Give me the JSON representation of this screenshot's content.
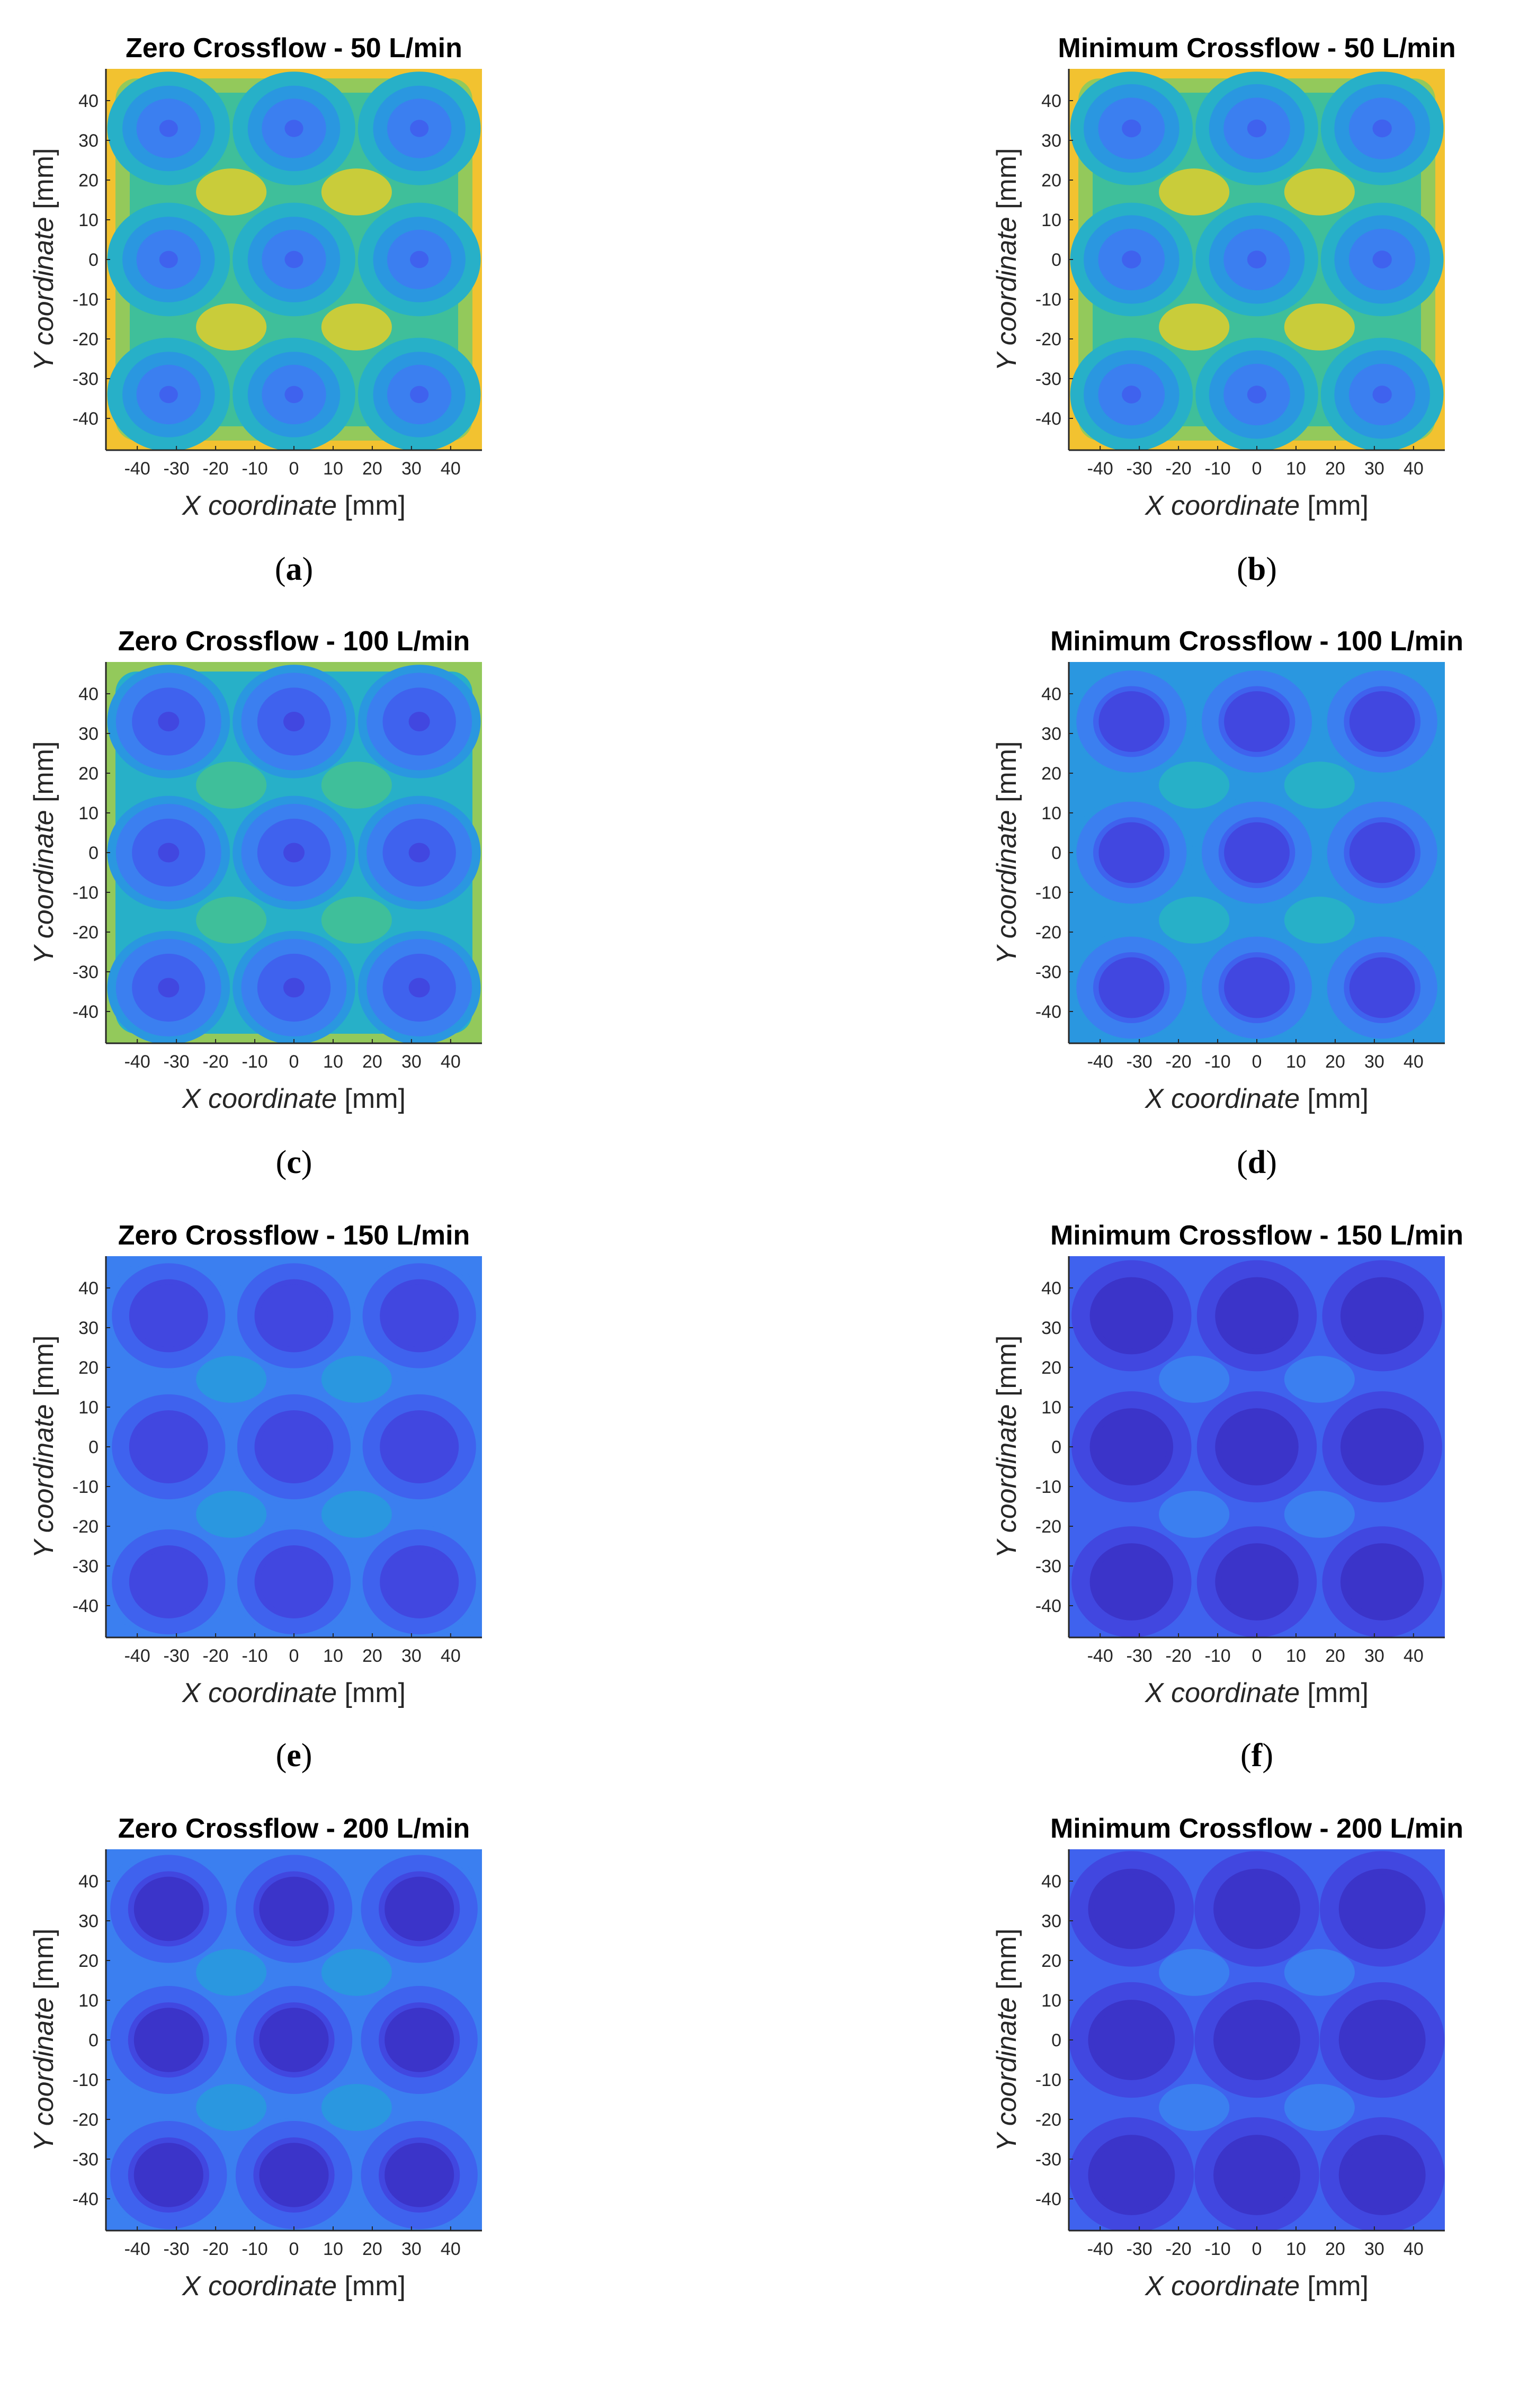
{
  "chart_data": [
    {
      "id": "a",
      "type": "heatmap",
      "caption_letter": "a",
      "title": "Zero Crossflow - 50 L/min",
      "xlabel_italic": "X coordinate",
      "xlabel_unit": " [mm]",
      "ylabel_italic": "Y coordinate",
      "ylabel_unit": " [mm]",
      "xlim": [
        -48,
        48
      ],
      "ylim": [
        -48,
        48
      ],
      "xticks": [
        -40,
        -30,
        -20,
        -10,
        0,
        10,
        20,
        30,
        40
      ],
      "yticks": [
        40,
        30,
        20,
        10,
        0,
        -10,
        -20,
        -30,
        -40
      ],
      "jets": [
        [
          -32,
          33
        ],
        [
          0,
          33
        ],
        [
          32,
          33
        ],
        [
          -32,
          0
        ],
        [
          0,
          0
        ],
        [
          32,
          0
        ],
        [
          -32,
          -34
        ],
        [
          0,
          -34
        ],
        [
          32,
          -34
        ]
      ],
      "level": 0.0
    },
    {
      "id": "b",
      "type": "heatmap",
      "caption_letter": "b",
      "title": "Minimum Crossflow - 50 L/min",
      "xlabel_italic": "X coordinate",
      "xlabel_unit": " [mm]",
      "ylabel_italic": "Y coordinate",
      "ylabel_unit": " [mm]",
      "xlim": [
        -48,
        48
      ],
      "ylim": [
        -48,
        48
      ],
      "xticks": [
        -40,
        -30,
        -20,
        -10,
        0,
        10,
        20,
        30,
        40
      ],
      "yticks": [
        40,
        30,
        20,
        10,
        0,
        -10,
        -20,
        -30,
        -40
      ],
      "jets": [
        [
          -32,
          33
        ],
        [
          0,
          33
        ],
        [
          32,
          33
        ],
        [
          -32,
          0
        ],
        [
          0,
          0
        ],
        [
          32,
          0
        ],
        [
          -32,
          -34
        ],
        [
          0,
          -34
        ],
        [
          32,
          -34
        ]
      ],
      "level": 0.1
    },
    {
      "id": "c",
      "type": "heatmap",
      "caption_letter": "c",
      "title": "Zero Crossflow - 100 L/min",
      "xlabel_italic": "X coordinate",
      "xlabel_unit": " [mm]",
      "ylabel_italic": "Y coordinate",
      "ylabel_unit": " [mm]",
      "xlim": [
        -48,
        48
      ],
      "ylim": [
        -48,
        48
      ],
      "xticks": [
        -40,
        -30,
        -20,
        -10,
        0,
        10,
        20,
        30,
        40
      ],
      "yticks": [
        40,
        30,
        20,
        10,
        0,
        -10,
        -20,
        -30,
        -40
      ],
      "jets": [
        [
          -32,
          33
        ],
        [
          0,
          33
        ],
        [
          32,
          33
        ],
        [
          -32,
          0
        ],
        [
          0,
          0
        ],
        [
          32,
          0
        ],
        [
          -32,
          -34
        ],
        [
          0,
          -34
        ],
        [
          32,
          -34
        ]
      ],
      "level": 0.4
    },
    {
      "id": "d",
      "type": "heatmap",
      "caption_letter": "d",
      "title": "Minimum Crossflow - 100 L/min",
      "xlabel_italic": "X coordinate",
      "xlabel_unit": " [mm]",
      "ylabel_italic": "Y coordinate",
      "ylabel_unit": " [mm]",
      "xlim": [
        -48,
        48
      ],
      "ylim": [
        -48,
        48
      ],
      "xticks": [
        -40,
        -30,
        -20,
        -10,
        0,
        10,
        20,
        30,
        40
      ],
      "yticks": [
        40,
        30,
        20,
        10,
        0,
        -10,
        -20,
        -30,
        -40
      ],
      "jets": [
        [
          -32,
          33
        ],
        [
          0,
          33
        ],
        [
          32,
          33
        ],
        [
          -32,
          0
        ],
        [
          0,
          0
        ],
        [
          32,
          0
        ],
        [
          -32,
          -34
        ],
        [
          0,
          -34
        ],
        [
          32,
          -34
        ]
      ],
      "level": 0.55
    },
    {
      "id": "e",
      "type": "heatmap",
      "caption_letter": "e",
      "title": "Zero Crossflow - 150 L/min",
      "xlabel_italic": "X coordinate",
      "xlabel_unit": " [mm]",
      "ylabel_italic": "Y coordinate",
      "ylabel_unit": " [mm]",
      "xlim": [
        -48,
        48
      ],
      "ylim": [
        -48,
        48
      ],
      "xticks": [
        -40,
        -30,
        -20,
        -10,
        0,
        10,
        20,
        30,
        40
      ],
      "yticks": [
        40,
        30,
        20,
        10,
        0,
        -10,
        -20,
        -30,
        -40
      ],
      "jets": [
        [
          -32,
          33
        ],
        [
          0,
          33
        ],
        [
          32,
          33
        ],
        [
          -32,
          0
        ],
        [
          0,
          0
        ],
        [
          32,
          0
        ],
        [
          -32,
          -34
        ],
        [
          0,
          -34
        ],
        [
          32,
          -34
        ]
      ],
      "level": 0.65
    },
    {
      "id": "f",
      "type": "heatmap",
      "caption_letter": "f",
      "title": "Minimum Crossflow - 150 L/min",
      "xlabel_italic": "X coordinate",
      "xlabel_unit": " [mm]",
      "ylabel_italic": "Y coordinate",
      "ylabel_unit": " [mm]",
      "xlim": [
        -48,
        48
      ],
      "ylim": [
        -48,
        48
      ],
      "xticks": [
        -40,
        -30,
        -20,
        -10,
        0,
        10,
        20,
        30,
        40
      ],
      "yticks": [
        40,
        30,
        20,
        10,
        0,
        -10,
        -20,
        -30,
        -40
      ],
      "jets": [
        [
          -32,
          33
        ],
        [
          0,
          33
        ],
        [
          32,
          33
        ],
        [
          -32,
          0
        ],
        [
          0,
          0
        ],
        [
          32,
          0
        ],
        [
          -32,
          -34
        ],
        [
          0,
          -34
        ],
        [
          32,
          -34
        ]
      ],
      "level": 0.85
    },
    {
      "id": "g",
      "type": "heatmap",
      "caption_letter": "",
      "title": "Zero Crossflow - 200 L/min",
      "xlabel_italic": "X coordinate",
      "xlabel_unit": " [mm]",
      "ylabel_italic": "Y coordinate",
      "ylabel_unit": " [mm]",
      "xlim": [
        -48,
        48
      ],
      "ylim": [
        -48,
        48
      ],
      "xticks": [
        -40,
        -30,
        -20,
        -10,
        0,
        10,
        20,
        30,
        40
      ],
      "yticks": [
        40,
        30,
        20,
        10,
        0,
        -10,
        -20,
        -30,
        -40
      ],
      "jets": [
        [
          -32,
          33
        ],
        [
          0,
          33
        ],
        [
          32,
          33
        ],
        [
          -32,
          0
        ],
        [
          0,
          0
        ],
        [
          32,
          0
        ],
        [
          -32,
          -34
        ],
        [
          0,
          -34
        ],
        [
          32,
          -34
        ]
      ],
      "level": 0.75
    },
    {
      "id": "h",
      "type": "heatmap",
      "caption_letter": "",
      "title": "Minimum Crossflow - 200 L/min",
      "xlabel_italic": "X coordinate",
      "xlabel_unit": " [mm]",
      "ylabel_italic": "Y coordinate",
      "ylabel_unit": " [mm]",
      "xlim": [
        -48,
        48
      ],
      "ylim": [
        -48,
        48
      ],
      "xticks": [
        -40,
        -30,
        -20,
        -10,
        0,
        10,
        20,
        30,
        40
      ],
      "yticks": [
        40,
        30,
        20,
        10,
        0,
        -10,
        -20,
        -30,
        -40
      ],
      "jets": [
        [
          -32,
          33
        ],
        [
          0,
          33
        ],
        [
          32,
          33
        ],
        [
          -32,
          0
        ],
        [
          0,
          0
        ],
        [
          32,
          0
        ],
        [
          -32,
          -34
        ],
        [
          0,
          -34
        ],
        [
          32,
          -34
        ]
      ],
      "level": 1.0
    }
  ],
  "colors": {
    "yellow": "#f2c230",
    "orange": "#f7a93c",
    "yellowgreen": "#c9cc3a",
    "green": "#93c95b",
    "teal": "#3fbf9a",
    "cyan": "#27b0c8",
    "sky": "#2a97e0",
    "blue": "#3b7ff0",
    "deepblue": "#3f62ee",
    "indigo": "#4147e0",
    "navy": "#3b34c9"
  }
}
